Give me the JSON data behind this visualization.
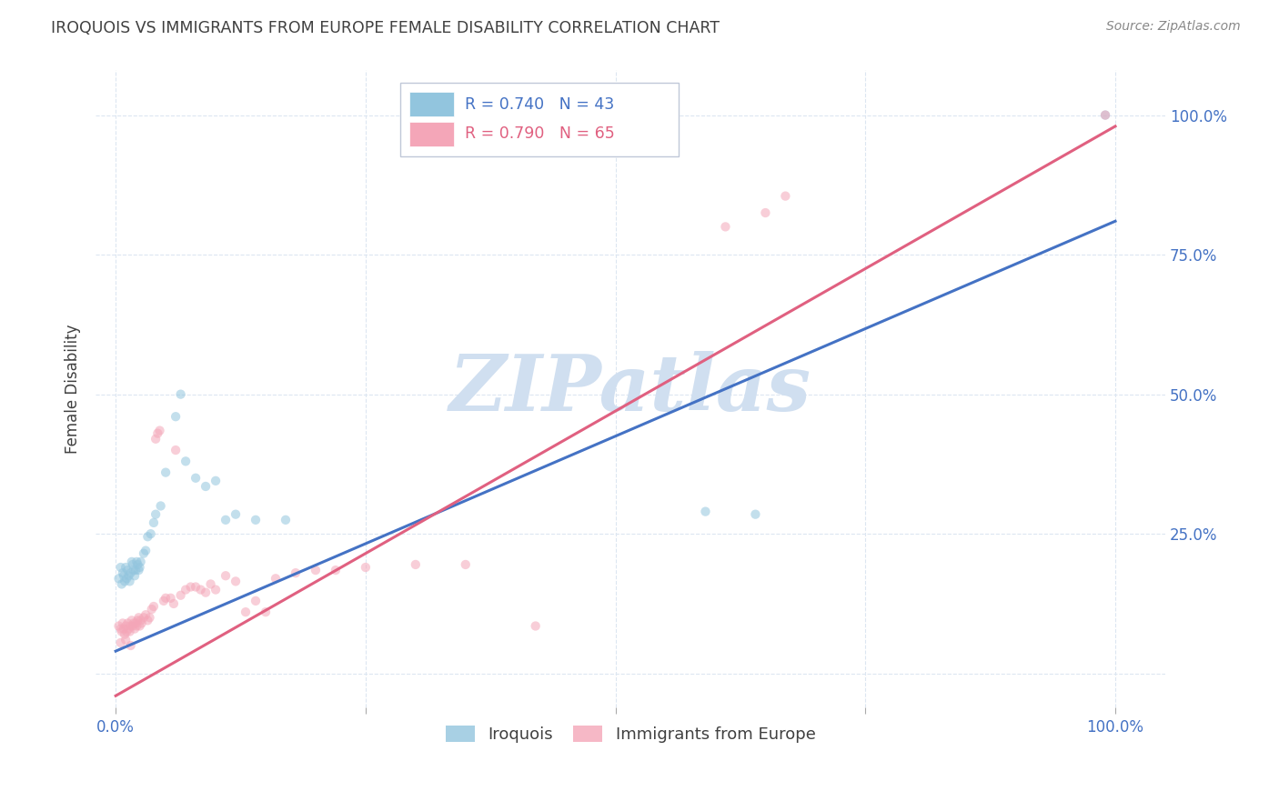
{
  "title": "IROQUOIS VS IMMIGRANTS FROM EUROPE FEMALE DISABILITY CORRELATION CHART",
  "source": "Source: ZipAtlas.com",
  "ylabel": "Female Disability",
  "watermark": "ZIPatlas",
  "blue_R": 0.74,
  "blue_N": 43,
  "pink_R": 0.79,
  "pink_N": 65,
  "blue_color": "#92c5de",
  "pink_color": "#f4a6b8",
  "blue_line_color": "#4472c4",
  "pink_line_color": "#e06080",
  "axis_tick_color": "#4472c4",
  "title_color": "#404040",
  "watermark_color": "#d0dff0",
  "blue_line_slope": 0.77,
  "blue_line_intercept": 0.04,
  "pink_line_slope": 1.02,
  "pink_line_intercept": -0.04,
  "blue_scatter": [
    [
      0.003,
      0.17
    ],
    [
      0.005,
      0.19
    ],
    [
      0.006,
      0.16
    ],
    [
      0.007,
      0.18
    ],
    [
      0.008,
      0.175
    ],
    [
      0.009,
      0.165
    ],
    [
      0.01,
      0.19
    ],
    [
      0.011,
      0.17
    ],
    [
      0.012,
      0.185
    ],
    [
      0.013,
      0.175
    ],
    [
      0.014,
      0.165
    ],
    [
      0.015,
      0.18
    ],
    [
      0.016,
      0.2
    ],
    [
      0.017,
      0.195
    ],
    [
      0.018,
      0.185
    ],
    [
      0.019,
      0.175
    ],
    [
      0.02,
      0.185
    ],
    [
      0.021,
      0.2
    ],
    [
      0.022,
      0.195
    ],
    [
      0.023,
      0.185
    ],
    [
      0.024,
      0.19
    ],
    [
      0.025,
      0.2
    ],
    [
      0.028,
      0.215
    ],
    [
      0.03,
      0.22
    ],
    [
      0.032,
      0.245
    ],
    [
      0.035,
      0.25
    ],
    [
      0.038,
      0.27
    ],
    [
      0.04,
      0.285
    ],
    [
      0.045,
      0.3
    ],
    [
      0.05,
      0.36
    ],
    [
      0.06,
      0.46
    ],
    [
      0.065,
      0.5
    ],
    [
      0.07,
      0.38
    ],
    [
      0.08,
      0.35
    ],
    [
      0.09,
      0.335
    ],
    [
      0.1,
      0.345
    ],
    [
      0.11,
      0.275
    ],
    [
      0.12,
      0.285
    ],
    [
      0.14,
      0.275
    ],
    [
      0.17,
      0.275
    ],
    [
      0.59,
      0.29
    ],
    [
      0.64,
      0.285
    ],
    [
      0.99,
      1.0
    ]
  ],
  "pink_scatter": [
    [
      0.003,
      0.085
    ],
    [
      0.005,
      0.08
    ],
    [
      0.006,
      0.075
    ],
    [
      0.007,
      0.09
    ],
    [
      0.008,
      0.08
    ],
    [
      0.009,
      0.07
    ],
    [
      0.01,
      0.085
    ],
    [
      0.011,
      0.075
    ],
    [
      0.012,
      0.09
    ],
    [
      0.013,
      0.08
    ],
    [
      0.014,
      0.075
    ],
    [
      0.015,
      0.085
    ],
    [
      0.016,
      0.095
    ],
    [
      0.017,
      0.085
    ],
    [
      0.018,
      0.09
    ],
    [
      0.019,
      0.08
    ],
    [
      0.02,
      0.09
    ],
    [
      0.021,
      0.085
    ],
    [
      0.022,
      0.095
    ],
    [
      0.023,
      0.1
    ],
    [
      0.024,
      0.085
    ],
    [
      0.025,
      0.095
    ],
    [
      0.026,
      0.09
    ],
    [
      0.028,
      0.1
    ],
    [
      0.03,
      0.105
    ],
    [
      0.032,
      0.095
    ],
    [
      0.034,
      0.1
    ],
    [
      0.036,
      0.115
    ],
    [
      0.038,
      0.12
    ],
    [
      0.04,
      0.42
    ],
    [
      0.042,
      0.43
    ],
    [
      0.044,
      0.435
    ],
    [
      0.048,
      0.13
    ],
    [
      0.05,
      0.135
    ],
    [
      0.055,
      0.135
    ],
    [
      0.058,
      0.125
    ],
    [
      0.06,
      0.4
    ],
    [
      0.065,
      0.14
    ],
    [
      0.07,
      0.15
    ],
    [
      0.075,
      0.155
    ],
    [
      0.08,
      0.155
    ],
    [
      0.085,
      0.15
    ],
    [
      0.09,
      0.145
    ],
    [
      0.095,
      0.16
    ],
    [
      0.1,
      0.15
    ],
    [
      0.11,
      0.175
    ],
    [
      0.12,
      0.165
    ],
    [
      0.13,
      0.11
    ],
    [
      0.14,
      0.13
    ],
    [
      0.15,
      0.11
    ],
    [
      0.16,
      0.17
    ],
    [
      0.18,
      0.18
    ],
    [
      0.2,
      0.185
    ],
    [
      0.22,
      0.185
    ],
    [
      0.25,
      0.19
    ],
    [
      0.3,
      0.195
    ],
    [
      0.35,
      0.195
    ],
    [
      0.42,
      0.085
    ],
    [
      0.61,
      0.8
    ],
    [
      0.65,
      0.825
    ],
    [
      0.67,
      0.855
    ],
    [
      0.99,
      1.0
    ],
    [
      0.005,
      0.055
    ],
    [
      0.01,
      0.06
    ],
    [
      0.015,
      0.05
    ]
  ],
  "xlim": [
    -0.02,
    1.05
  ],
  "ylim": [
    -0.06,
    1.08
  ],
  "xticks": [
    0.0,
    0.25,
    0.5,
    0.75,
    1.0
  ],
  "yticks": [
    0.0,
    0.25,
    0.5,
    0.75,
    1.0
  ],
  "xticklabels_left": [
    "0.0%",
    "",
    "",
    "",
    "100.0%"
  ],
  "yticklabels_right": [
    "",
    "25.0%",
    "50.0%",
    "75.0%",
    "100.0%"
  ],
  "grid_color": "#dce6f1",
  "background_color": "#ffffff",
  "legend_blue_label": "Iroquois",
  "legend_pink_label": "Immigrants from Europe",
  "marker_size": 55,
  "marker_alpha": 0.55,
  "line_width": 2.2
}
